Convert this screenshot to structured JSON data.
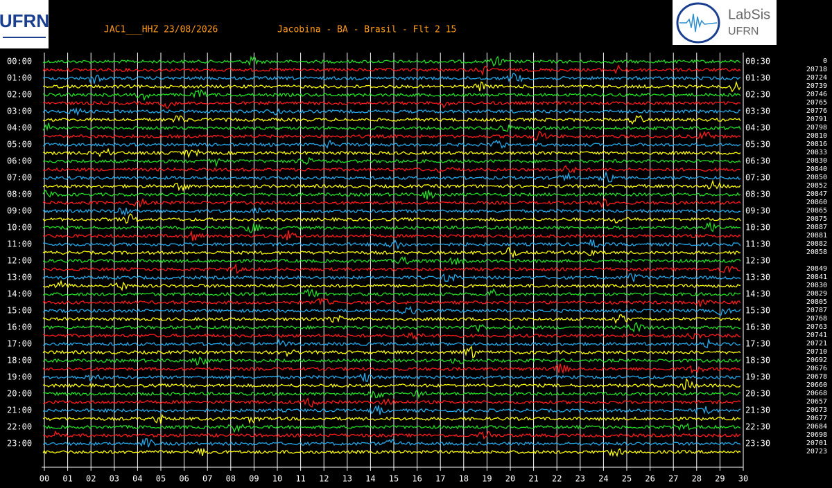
{
  "header": {
    "station": "JAC1___HHZ 23/08/2026",
    "location": "Jacobina - BA - Brasil - Flt 2 15"
  },
  "logos": {
    "left": "UFRN",
    "right_title": "LabSis",
    "right_subtitle": "UFRN"
  },
  "left_labels": [
    "00:00",
    "01:00",
    "02:00",
    "03:00",
    "04:00",
    "05:00",
    "06:00",
    "07:00",
    "08:00",
    "09:00",
    "10:00",
    "11:00",
    "12:00",
    "13:00",
    "14:00",
    "15:00",
    "16:00",
    "17:00",
    "18:00",
    "19:00",
    "20:00",
    "21:00",
    "22:00",
    "23:00"
  ],
  "right_labels": [
    "00:30",
    "01:30",
    "02:30",
    "03:30",
    "04:30",
    "05:30",
    "06:30",
    "07:30",
    "08:30",
    "09:30",
    "10:30",
    "11:30",
    "12:30",
    "13:30",
    "14:30",
    "15:30",
    "16:30",
    "17:30",
    "18:30",
    "19:30",
    "20:30",
    "21:30",
    "22:30",
    "23:30"
  ],
  "counts": [
    0,
    20718,
    20724,
    20739,
    20746,
    20765,
    20776,
    20791,
    20798,
    20810,
    20816,
    20833,
    20830,
    20840,
    20850,
    20852,
    20847,
    20860,
    20865,
    20875,
    20887,
    20881,
    20882,
    20858,
    null,
    20849,
    20841,
    20830,
    20829,
    20805,
    20787,
    20768,
    20763,
    20741,
    20721,
    20710,
    20692,
    20676,
    20678,
    20660,
    20668,
    20657,
    20673,
    20677,
    20684,
    20698,
    20701,
    20723
  ],
  "x_labels": [
    "00",
    "01",
    "02",
    "03",
    "04",
    "05",
    "06",
    "07",
    "08",
    "09",
    "10",
    "11",
    "12",
    "13",
    "14",
    "15",
    "16",
    "17",
    "18",
    "19",
    "20",
    "21",
    "22",
    "23",
    "24",
    "25",
    "26",
    "27",
    "28",
    "29",
    "30"
  ]
}
